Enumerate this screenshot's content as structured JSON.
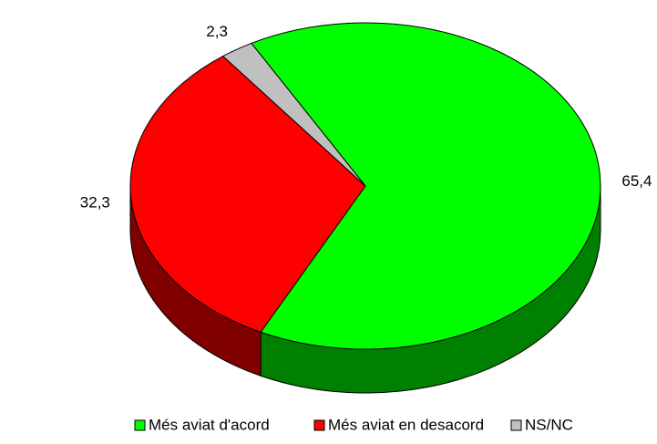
{
  "chart_data": {
    "type": "pie",
    "three_d": true,
    "categories": [
      "Més aviat d'acord",
      "Més aviat en desacord",
      "NS/NC"
    ],
    "values": [
      65.4,
      32.3,
      2.3
    ],
    "value_labels": [
      "65,4",
      "32,3",
      "2,3"
    ],
    "colors": [
      "#00ff00",
      "#ff0000",
      "#c0c0c0"
    ],
    "side_colors": [
      "#008000",
      "#800000",
      "#808080"
    ],
    "legend": "bottom"
  }
}
